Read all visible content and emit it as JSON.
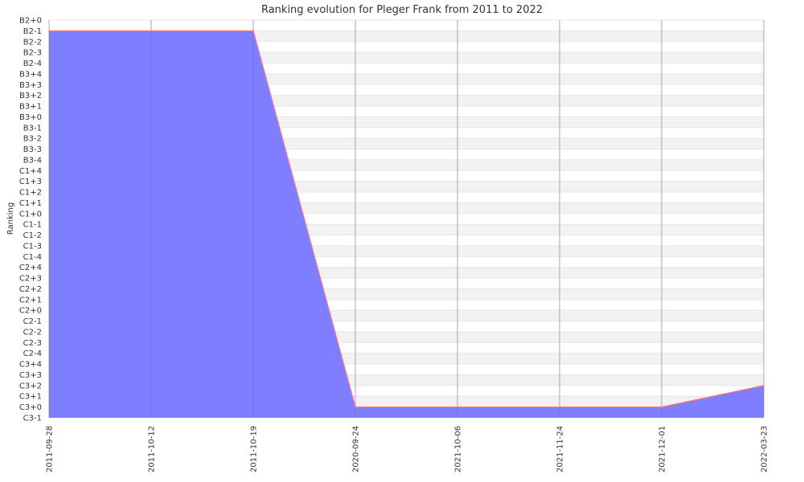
{
  "chart_data": {
    "type": "area",
    "title": "Ranking evolution for Pleger Frank from 2011 to 2022",
    "xlabel": "",
    "ylabel": "Ranking",
    "categories": [
      "2011-09-28",
      "2011-10-12",
      "2011-10-19",
      "2020-09-24",
      "2021-10-06",
      "2021-11-24",
      "2021-12-01",
      "2022-03-23"
    ],
    "y_levels": [
      "C3-1",
      "C3+0",
      "C3+1",
      "C3+2",
      "C3+3",
      "C3+4",
      "C2-4",
      "C2-3",
      "C2-2",
      "C2-1",
      "C2+0",
      "C2+1",
      "C2+2",
      "C2+3",
      "C2+4",
      "C1-4",
      "C1-3",
      "C1-2",
      "C1-1",
      "C1+0",
      "C1+1",
      "C1+2",
      "C1+3",
      "C1+4",
      "B3-4",
      "B3-3",
      "B3-2",
      "B3-1",
      "B3+0",
      "B3+1",
      "B3+2",
      "B3+3",
      "B3+4",
      "B2-4",
      "B2-3",
      "B2-2",
      "B2-1",
      "B2+0"
    ],
    "points": [
      {
        "x": "2011-09-28",
        "y": "B2-1"
      },
      {
        "x": "2011-10-19",
        "y": "B2-1"
      },
      {
        "x": "2020-09-24",
        "y": "C3+0"
      },
      {
        "x": "2021-12-01",
        "y": "C3+0"
      },
      {
        "x": "2022-03-23",
        "y": "C3+2"
      }
    ],
    "grid": true,
    "legend": "none",
    "colors": {
      "fill": "#7777ff",
      "line": "#ff7777",
      "band": "#f2f2f2",
      "grid": "#cccccc"
    }
  }
}
